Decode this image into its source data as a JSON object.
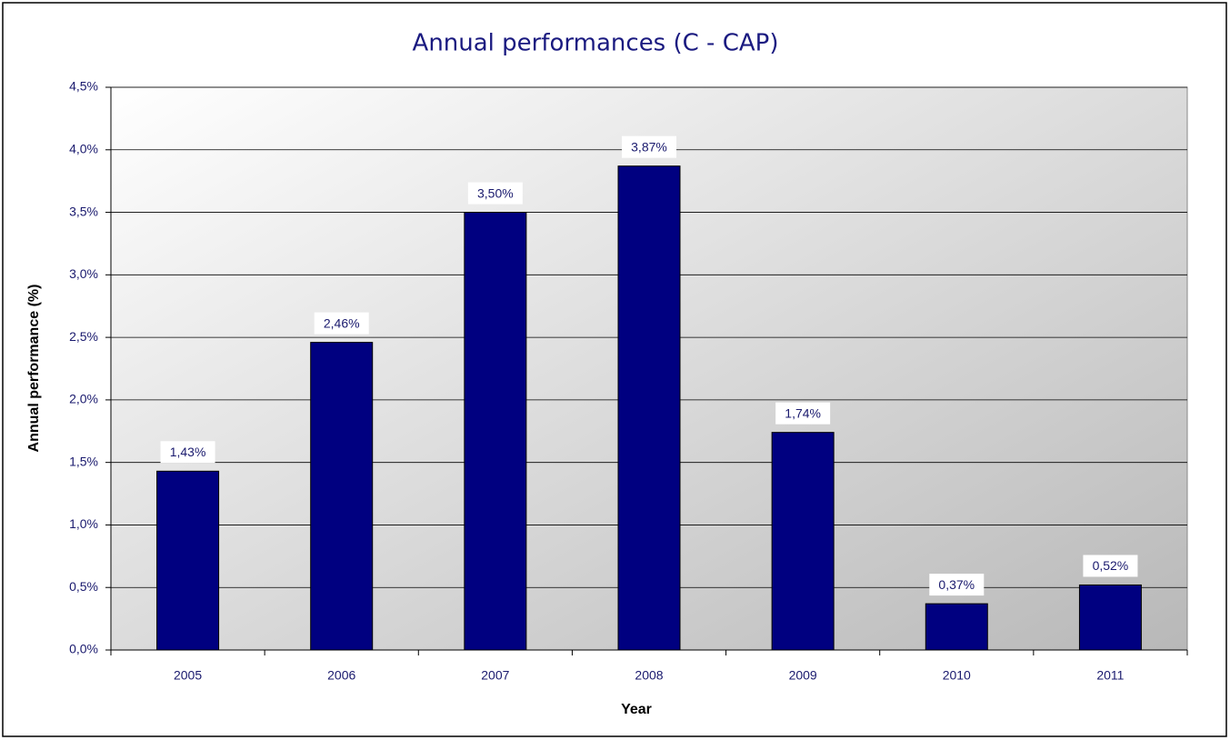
{
  "chart_data": {
    "type": "bar",
    "title": "Annual performances (C - CAP)",
    "x_label": "Year",
    "y_label": "Annual performance (%)",
    "categories": [
      "2005",
      "2006",
      "2007",
      "2008",
      "2009",
      "2010",
      "2011"
    ],
    "values": [
      1.43,
      2.46,
      3.5,
      3.87,
      1.74,
      0.37,
      0.52
    ],
    "value_labels": [
      "1,43%",
      "2,46%",
      "3,50%",
      "3,87%",
      "1,74%",
      "0,37%",
      "0,52%"
    ],
    "color": "#000080",
    "ylim": [
      0,
      4.5
    ],
    "yticks": [
      {
        "value": 0,
        "label": "0,0%"
      },
      {
        "value": 0.5,
        "label": "0,5%"
      },
      {
        "value": 1,
        "label": "1,0%"
      },
      {
        "value": 1.5,
        "label": "1,5%"
      },
      {
        "value": 2,
        "label": "2,0%"
      },
      {
        "value": 2.5,
        "label": "2,5%"
      },
      {
        "value": 3,
        "label": "3,0%"
      },
      {
        "value": 3.5,
        "label": "3,5%"
      },
      {
        "value": 4,
        "label": "4,0%"
      },
      {
        "value": 4.5,
        "label": "4,5%"
      }
    ],
    "grid": true
  }
}
